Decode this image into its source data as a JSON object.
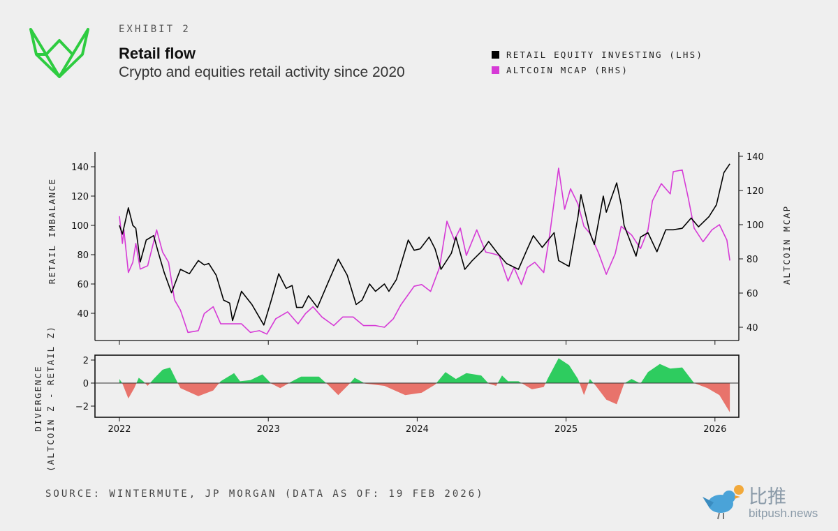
{
  "header": {
    "exhibit": "EXHIBIT 2",
    "title": "Retail flow",
    "subtitle": "Crypto and equities retail activity since 2020"
  },
  "legend": [
    {
      "label": "RETAIL EQUITY INVESTING (LHS)",
      "color": "#000000"
    },
    {
      "label": "ALTCOIN MCAP (RHS)",
      "color": "#d63ad6"
    }
  ],
  "footer": {
    "source": "SOURCE: WINTERMUTE, JP MORGAN (DATA AS OF: 19 FEB 2026)"
  },
  "watermark": {
    "cn": "比推",
    "en": "bitpush.news"
  },
  "colors": {
    "brand": "#2ecc40",
    "positive": "#2ecc5f",
    "negative": "#e8736b",
    "black": "#000000",
    "magenta": "#d63ad6"
  },
  "chart_data": [
    {
      "type": "line",
      "ylabel": "RETAIL IMBALANCE",
      "y2label": "ALTCOIN MCAP",
      "ylim": [
        31,
        150
      ],
      "y2lim": [
        32,
        142
      ],
      "yticks": [
        "40",
        "60",
        "80",
        "100",
        "120",
        "140"
      ],
      "y2ticks": [
        "40",
        "60",
        "80",
        "100",
        "120",
        "140"
      ],
      "xticks": [
        "2022",
        "2023",
        "2024",
        "2025",
        "2026"
      ],
      "series": [
        {
          "name": "RETAIL EQUITY INVESTING (LHS)",
          "axis": "left",
          "points": [
            [
              2022.0,
              100
            ],
            [
              2022.02,
              94
            ],
            [
              2022.06,
              112
            ],
            [
              2022.09,
              100
            ],
            [
              2022.11,
              98
            ],
            [
              2022.14,
              75
            ],
            [
              2022.18,
              90
            ],
            [
              2022.23,
              93
            ],
            [
              2022.26,
              82
            ],
            [
              2022.3,
              68
            ],
            [
              2022.35,
              54
            ],
            [
              2022.41,
              70
            ],
            [
              2022.47,
              67
            ],
            [
              2022.53,
              76
            ],
            [
              2022.57,
              73
            ],
            [
              2022.6,
              74
            ],
            [
              2022.65,
              66
            ],
            [
              2022.7,
              49
            ],
            [
              2022.74,
              47
            ],
            [
              2022.76,
              35
            ],
            [
              2022.82,
              55
            ],
            [
              2022.89,
              46
            ],
            [
              2022.97,
              32
            ],
            [
              2023.02,
              49
            ],
            [
              2023.07,
              67
            ],
            [
              2023.12,
              57
            ],
            [
              2023.16,
              59
            ],
            [
              2023.19,
              44
            ],
            [
              2023.23,
              44
            ],
            [
              2023.27,
              52
            ],
            [
              2023.33,
              44
            ],
            [
              2023.41,
              63
            ],
            [
              2023.47,
              77
            ],
            [
              2023.53,
              66
            ],
            [
              2023.59,
              46
            ],
            [
              2023.63,
              49
            ],
            [
              2023.68,
              60
            ],
            [
              2023.72,
              55
            ],
            [
              2023.78,
              60
            ],
            [
              2023.81,
              55
            ],
            [
              2023.86,
              63
            ],
            [
              2023.94,
              90
            ],
            [
              2023.98,
              83
            ],
            [
              2024.02,
              84
            ],
            [
              2024.08,
              92
            ],
            [
              2024.12,
              84
            ],
            [
              2024.16,
              70
            ],
            [
              2024.23,
              81
            ],
            [
              2024.26,
              92
            ],
            [
              2024.32,
              70
            ],
            [
              2024.37,
              76
            ],
            [
              2024.44,
              83
            ],
            [
              2024.48,
              89
            ],
            [
              2024.54,
              81
            ],
            [
              2024.6,
              74
            ],
            [
              2024.68,
              70
            ],
            [
              2024.74,
              84
            ],
            [
              2024.78,
              93
            ],
            [
              2024.84,
              85
            ],
            [
              2024.92,
              95
            ],
            [
              2024.95,
              76
            ],
            [
              2025.02,
              72
            ],
            [
              2025.08,
              106
            ],
            [
              2025.1,
              121
            ],
            [
              2025.16,
              95
            ],
            [
              2025.19,
              87
            ],
            [
              2025.25,
              120
            ],
            [
              2025.27,
              109
            ],
            [
              2025.34,
              129
            ],
            [
              2025.37,
              114
            ],
            [
              2025.39,
              100
            ],
            [
              2025.47,
              79
            ],
            [
              2025.5,
              92
            ],
            [
              2025.55,
              95
            ],
            [
              2025.61,
              82
            ],
            [
              2025.67,
              97
            ],
            [
              2025.72,
              97
            ],
            [
              2025.78,
              98
            ],
            [
              2025.84,
              105
            ],
            [
              2025.89,
              99
            ],
            [
              2025.96,
              106
            ],
            [
              2026.01,
              114
            ],
            [
              2026.06,
              136
            ],
            [
              2026.1,
              142
            ]
          ]
        },
        {
          "name": "ALTCOIN MCAP (RHS)",
          "axis": "right",
          "points": [
            [
              2022.0,
              105
            ],
            [
              2022.02,
              89
            ],
            [
              2022.03,
              97
            ],
            [
              2022.06,
              72
            ],
            [
              2022.09,
              78
            ],
            [
              2022.11,
              89
            ],
            [
              2022.14,
              74
            ],
            [
              2022.19,
              76
            ],
            [
              2022.25,
              97
            ],
            [
              2022.29,
              84
            ],
            [
              2022.33,
              78
            ],
            [
              2022.37,
              56
            ],
            [
              2022.41,
              50
            ],
            [
              2022.46,
              37
            ],
            [
              2022.53,
              38
            ],
            [
              2022.57,
              48
            ],
            [
              2022.63,
              52
            ],
            [
              2022.68,
              42
            ],
            [
              2022.77,
              42
            ],
            [
              2022.82,
              42
            ],
            [
              2022.88,
              37
            ],
            [
              2022.94,
              38
            ],
            [
              2022.99,
              36
            ],
            [
              2023.05,
              45
            ],
            [
              2023.13,
              49
            ],
            [
              2023.2,
              42
            ],
            [
              2023.25,
              48
            ],
            [
              2023.3,
              52
            ],
            [
              2023.36,
              46
            ],
            [
              2023.44,
              41
            ],
            [
              2023.5,
              46
            ],
            [
              2023.57,
              46
            ],
            [
              2023.64,
              41
            ],
            [
              2023.72,
              41
            ],
            [
              2023.78,
              40
            ],
            [
              2023.84,
              45
            ],
            [
              2023.89,
              53
            ],
            [
              2023.98,
              64
            ],
            [
              2024.03,
              65
            ],
            [
              2024.09,
              61
            ],
            [
              2024.15,
              75
            ],
            [
              2024.2,
              102
            ],
            [
              2024.25,
              91
            ],
            [
              2024.29,
              98
            ],
            [
              2024.33,
              82
            ],
            [
              2024.4,
              97
            ],
            [
              2024.46,
              84
            ],
            [
              2024.51,
              83
            ],
            [
              2024.55,
              82
            ],
            [
              2024.61,
              67
            ],
            [
              2024.65,
              75
            ],
            [
              2024.7,
              65
            ],
            [
              2024.74,
              75
            ],
            [
              2024.79,
              78
            ],
            [
              2024.85,
              72
            ],
            [
              2024.89,
              94
            ],
            [
              2024.95,
              133
            ],
            [
              2024.99,
              109
            ],
            [
              2025.03,
              121
            ],
            [
              2025.08,
              112
            ],
            [
              2025.12,
              99
            ],
            [
              2025.16,
              95
            ],
            [
              2025.22,
              83
            ],
            [
              2025.27,
              71
            ],
            [
              2025.33,
              83
            ],
            [
              2025.37,
              99
            ],
            [
              2025.44,
              94
            ],
            [
              2025.5,
              86
            ],
            [
              2025.55,
              97
            ],
            [
              2025.58,
              114
            ],
            [
              2025.64,
              124
            ],
            [
              2025.7,
              118
            ],
            [
              2025.72,
              131
            ],
            [
              2025.78,
              132
            ],
            [
              2025.82,
              116
            ],
            [
              2025.86,
              98
            ],
            [
              2025.92,
              90
            ],
            [
              2025.98,
              97
            ],
            [
              2026.03,
              100
            ],
            [
              2026.08,
              91
            ],
            [
              2026.1,
              79
            ]
          ]
        }
      ]
    },
    {
      "type": "area",
      "ylabel": "DIVERGENCE",
      "ylabel2": "(ALTCOIN Z - RETAIL Z)",
      "ylim": [
        -3,
        2.4
      ],
      "yticks": [
        "2",
        "0",
        "−2"
      ],
      "xticks": [
        "2022",
        "2023",
        "2024",
        "2025",
        "2026"
      ],
      "series": [
        {
          "name": "Divergence",
          "points": [
            [
              2022.0,
              0.36
            ],
            [
              2022.02,
              -0.04
            ],
            [
              2022.06,
              -1.34
            ],
            [
              2022.1,
              -0.44
            ],
            [
              2022.13,
              0.46
            ],
            [
              2022.16,
              0.16
            ],
            [
              2022.19,
              -0.24
            ],
            [
              2022.23,
              0.36
            ],
            [
              2022.29,
              1.16
            ],
            [
              2022.34,
              1.36
            ],
            [
              2022.39,
              0.06
            ],
            [
              2022.41,
              -0.44
            ],
            [
              2022.53,
              -1.14
            ],
            [
              2022.63,
              -0.64
            ],
            [
              2022.68,
              0.16
            ],
            [
              2022.77,
              0.86
            ],
            [
              2022.81,
              0.16
            ],
            [
              2022.88,
              0.26
            ],
            [
              2022.96,
              0.76
            ],
            [
              2023.02,
              -0.04
            ],
            [
              2023.08,
              -0.44
            ],
            [
              2023.16,
              0.16
            ],
            [
              2023.22,
              0.56
            ],
            [
              2023.34,
              0.56
            ],
            [
              2023.4,
              -0.14
            ],
            [
              2023.47,
              -1.04
            ],
            [
              2023.54,
              -0.14
            ],
            [
              2023.58,
              0.46
            ],
            [
              2023.65,
              -0.04
            ],
            [
              2023.78,
              -0.24
            ],
            [
              2023.92,
              -1.04
            ],
            [
              2024.03,
              -0.84
            ],
            [
              2024.12,
              -0.14
            ],
            [
              2024.19,
              0.96
            ],
            [
              2024.26,
              0.36
            ],
            [
              2024.33,
              0.86
            ],
            [
              2024.43,
              0.66
            ],
            [
              2024.48,
              -0.04
            ],
            [
              2024.53,
              -0.24
            ],
            [
              2024.57,
              0.66
            ],
            [
              2024.61,
              0.16
            ],
            [
              2024.68,
              0.16
            ],
            [
              2024.77,
              -0.54
            ],
            [
              2024.85,
              -0.34
            ],
            [
              2024.88,
              0.46
            ],
            [
              2024.95,
              2.16
            ],
            [
              2025.02,
              1.56
            ],
            [
              2025.08,
              0.36
            ],
            [
              2025.12,
              -1.04
            ],
            [
              2025.16,
              0.36
            ],
            [
              2025.2,
              -0.24
            ],
            [
              2025.27,
              -1.44
            ],
            [
              2025.34,
              -1.84
            ],
            [
              2025.39,
              -0.04
            ],
            [
              2025.44,
              0.36
            ],
            [
              2025.5,
              -0.04
            ],
            [
              2025.55,
              0.96
            ],
            [
              2025.63,
              1.66
            ],
            [
              2025.7,
              1.26
            ],
            [
              2025.78,
              1.36
            ],
            [
              2025.86,
              0.0
            ],
            [
              2025.95,
              -0.44
            ],
            [
              2026.03,
              -1.04
            ],
            [
              2026.1,
              -2.54
            ]
          ]
        }
      ]
    }
  ]
}
